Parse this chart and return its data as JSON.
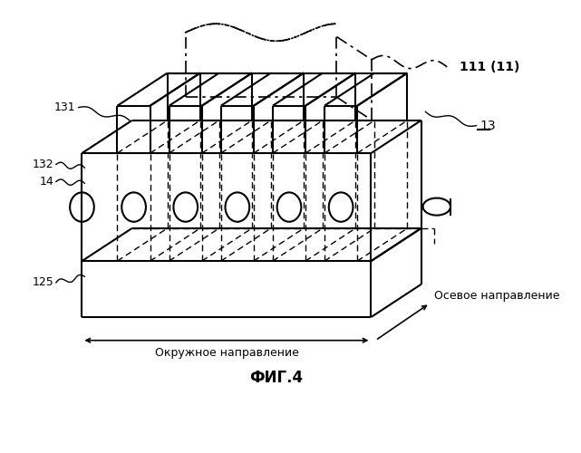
{
  "title": "ФИГ.4",
  "label_111": "111 (11)",
  "label_13": "13",
  "label_131": "131",
  "label_132": "132",
  "label_14": "14",
  "label_125": "125",
  "arrow_circ_label": "Окружное направление",
  "arrow_axial_label": "Осевое направление",
  "bg_color": "#ffffff",
  "line_color": "#000000"
}
